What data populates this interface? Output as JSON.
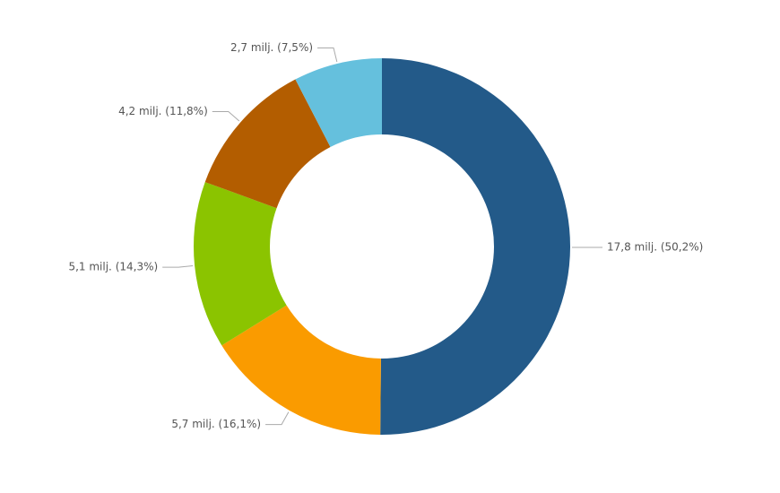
{
  "chart_data": {
    "type": "donut",
    "values": [
      17.8,
      5.7,
      5.1,
      4.2,
      2.7
    ],
    "value_labels": [
      "17,8 milj. (50,2%)",
      "5,7 milj. (16,1%)",
      "5,1 milj. (14,3%)",
      "4,2 milj. (11,8%)",
      "2,7 milj. (7,5%)"
    ],
    "colors": [
      "#235a89",
      "#fa9b00",
      "#8bc400",
      "#b35d00",
      "#65c0dd"
    ]
  }
}
